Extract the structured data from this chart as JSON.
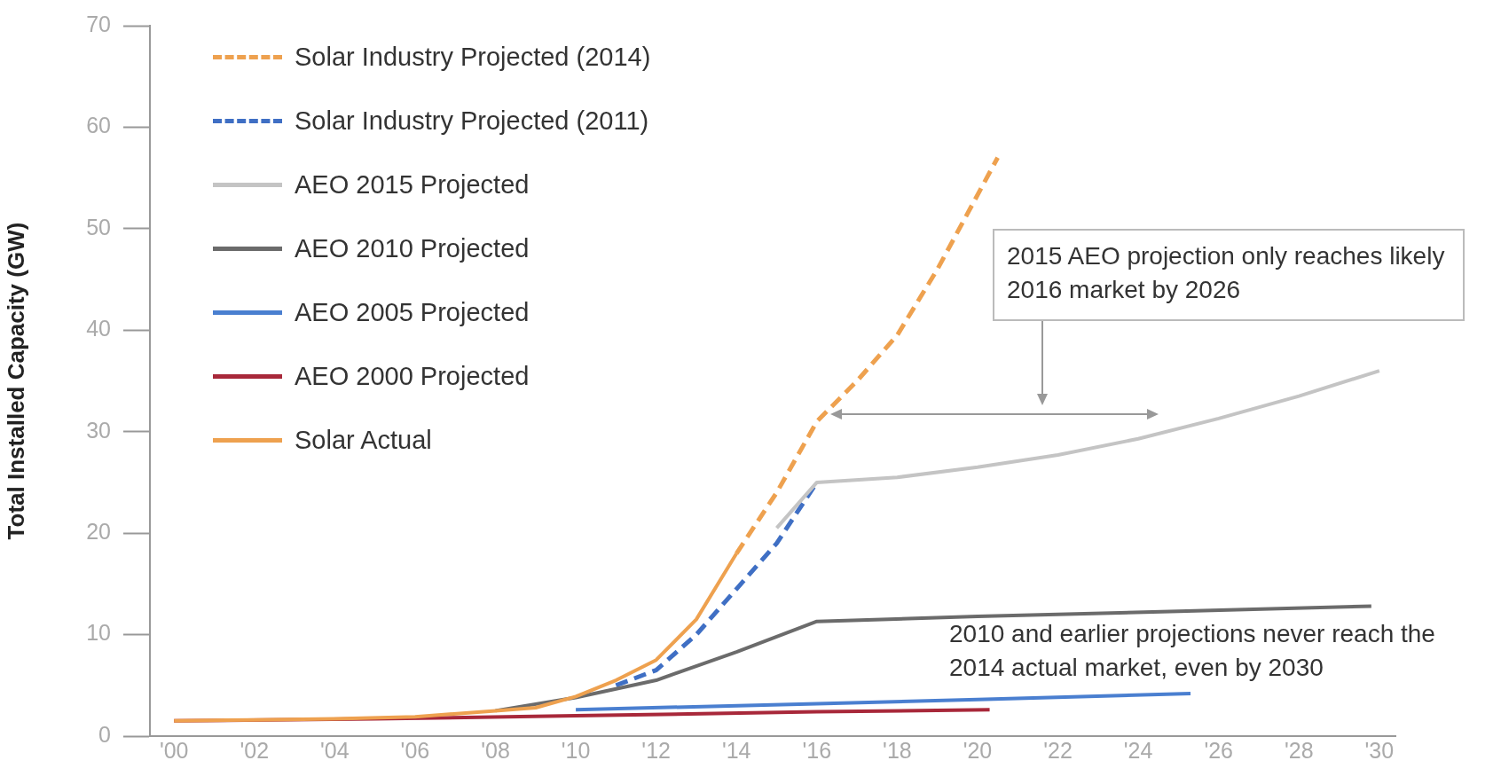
{
  "chart_data": {
    "type": "line",
    "ylabel": "Total Installed Capacity (GW)",
    "xlim": [
      1999.4,
      2030.4
    ],
    "ylim": [
      0,
      70
    ],
    "xticks": [
      {
        "value": 2000,
        "label": "'00"
      },
      {
        "value": 2002,
        "label": "'02"
      },
      {
        "value": 2004,
        "label": "'04"
      },
      {
        "value": 2006,
        "label": "'06"
      },
      {
        "value": 2008,
        "label": "'08"
      },
      {
        "value": 2010,
        "label": "'10"
      },
      {
        "value": 2012,
        "label": "'12"
      },
      {
        "value": 2014,
        "label": "'14"
      },
      {
        "value": 2016,
        "label": "'16"
      },
      {
        "value": 2018,
        "label": "'18"
      },
      {
        "value": 2020,
        "label": "'20"
      },
      {
        "value": 2022,
        "label": "'22"
      },
      {
        "value": 2024,
        "label": "'24"
      },
      {
        "value": 2026,
        "label": "'26"
      },
      {
        "value": 2028,
        "label": "'28"
      },
      {
        "value": 2030,
        "label": "'30"
      }
    ],
    "yticks": [
      0,
      10,
      20,
      30,
      40,
      50,
      60,
      70
    ],
    "grid": false,
    "legend": "top left",
    "marker": "none",
    "series": [
      {
        "name": "Solar Industry Projected (2014)",
        "color": "#eea14f",
        "line_style": "dashed",
        "x": [
          2014,
          2015,
          2016,
          2017,
          2018,
          2019,
          2020.5
        ],
        "values": [
          18,
          24,
          31,
          35,
          39.5,
          46,
          57
        ]
      },
      {
        "name": "Solar Industry Projected (2011)",
        "color": "#3f6fc4",
        "line_style": "dashed",
        "x": [
          2011,
          2012,
          2013,
          2014,
          2015,
          2016
        ],
        "values": [
          5,
          6.5,
          10,
          14.5,
          19,
          25
        ]
      },
      {
        "name": "AEO 2015 Projected",
        "color": "#c4c4c4",
        "line_style": "solid",
        "x": [
          2015,
          2016,
          2018,
          2020,
          2022,
          2024,
          2026,
          2028,
          2030
        ],
        "values": [
          20.5,
          25,
          25.5,
          26.5,
          27.7,
          29.3,
          31.3,
          33.5,
          36
        ]
      },
      {
        "name": "AEO 2010 Projected",
        "color": "#6b6b6b",
        "line_style": "solid",
        "x": [
          2008,
          2010,
          2012,
          2014,
          2016,
          2020,
          2025,
          2029.8
        ],
        "values": [
          2.5,
          3.8,
          5.5,
          8.3,
          11.3,
          11.8,
          12.3,
          12.8
        ]
      },
      {
        "name": "AEO 2005 Projected",
        "color": "#4a7fd0",
        "line_style": "solid",
        "x": [
          2010,
          2016,
          2020,
          2025.3
        ],
        "values": [
          2.6,
          3.2,
          3.6,
          4.2
        ]
      },
      {
        "name": "AEO 2000 Projected",
        "color": "#a8283a",
        "line_style": "solid",
        "x": [
          2000,
          2005,
          2010,
          2016,
          2020.3
        ],
        "values": [
          1.5,
          1.7,
          2.0,
          2.4,
          2.6
        ]
      },
      {
        "name": "Solar Actual",
        "color": "#eea14f",
        "line_style": "solid",
        "x": [
          2000,
          2002,
          2004,
          2006,
          2008,
          2009,
          2010,
          2011,
          2012,
          2013,
          2014
        ],
        "values": [
          1.5,
          1.6,
          1.7,
          1.9,
          2.5,
          2.8,
          3.9,
          5.5,
          7.5,
          11.5,
          18
        ]
      }
    ],
    "annotations": [
      "2015 AEO projection only reaches likely 2016 market by 2026",
      "2010 and earlier projections never reach the 2014 actual market, even by 2030"
    ]
  }
}
